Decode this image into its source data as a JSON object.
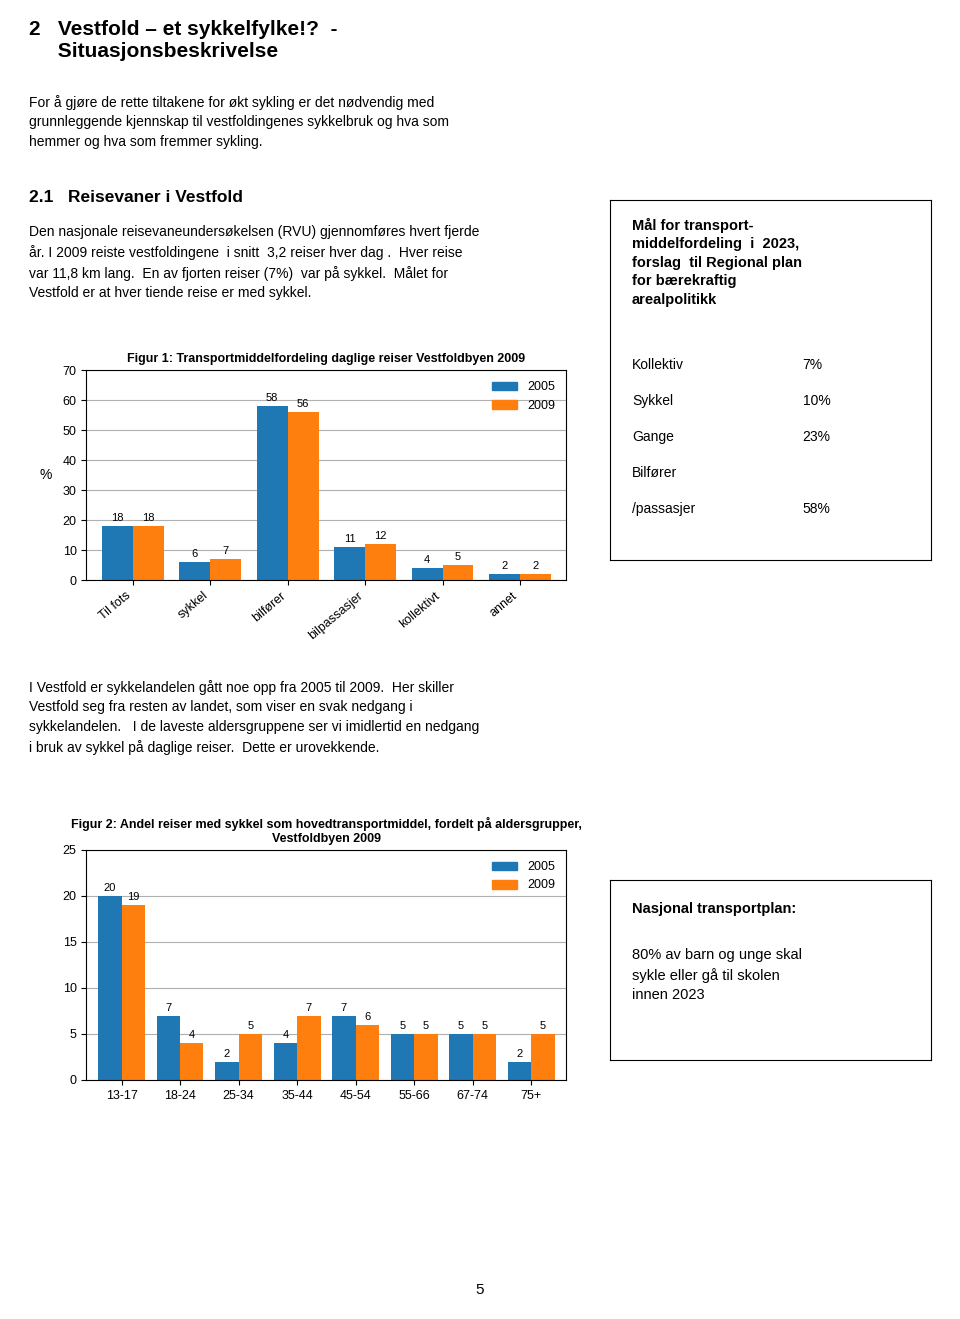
{
  "title": "2   Vestfold – et sykkelfylke!?  -\n     Situasjonsbeskrivelse",
  "annotations": [
    "For å gjøre de rette tiltakene for økt sykling er det nødvendig med\ngrunnleggende kjennskap til vestfoldingenes sykkelbruk og hva som\nhemmer og hva som fremmer sykling.",
    "2.1   Reisevaner i Vestfold",
    "Den nasjonale reisevaneundersøkelsen (RVU) gjennomføres hvert fjerde\når. I 2009 reiste vestfoldingene  i snitt  3,2 reiser hver dag .  Hver reise\nvar 11,8 km lang.  En av fjorten reiser (7%)  var på sykkel.  Målet for\nVestfold er at hver tiende reise er med sykkel.",
    "I Vestfold er sykkelandelen gått noe opp fra 2005 til 2009.  Her skiller\nVestfold seg fra resten av landet, som viser en svak nedgang i\nsykkelandelen.   I de laveste aldersgruppene ser vi imidlertid en nedgang\ni bruk av sykkel på daglige reiser.  Dette er urovekkende.",
    "Mål for transport-\nmiddelfordeling  i  2023,\nforslag  til Regional plan\nfor bærekraftig\narealpolitikk",
    "Kollektiv",
    "7%",
    "Sykkel",
    "10%",
    "Gange",
    "23%",
    "Bilfører",
    "/passasjer",
    "58%",
    "Nasjonal transportplan:",
    "80% av barn og unge skal\nsykle eller gå til skolen\ninnen 2023",
    "5"
  ],
  "chart_data": [
    {
      "type": "bar",
      "title": "Figur 1: Transportmiddelfordeling daglige reiser Vestfoldbyen 2009",
      "categories": [
        "Til fots",
        "sykkel",
        "bilfører",
        "bilpassasjer",
        "kollektivt",
        "annet"
      ],
      "series": [
        {
          "name": "2005",
          "values": [
            18,
            6,
            58,
            11,
            4,
            2
          ]
        },
        {
          "name": "2009",
          "values": [
            18,
            7,
            56,
            12,
            5,
            2
          ]
        }
      ],
      "ylabel": "%",
      "ylim": [
        0,
        70
      ],
      "yticks": [
        0,
        10,
        20,
        30,
        40,
        50,
        60,
        70
      ],
      "grid": true,
      "legend": "upper right",
      "data_labels": true
    },
    {
      "type": "bar",
      "title": "Figur 2: Andel reiser med sykkel som hovedtransportmiddel, fordelt på aldersgrupper,\nVestfoldbyen 2009",
      "categories": [
        "13-17",
        "18-24",
        "25-34",
        "35-44",
        "45-54",
        "55-66",
        "67-74",
        "75+"
      ],
      "series": [
        {
          "name": "2005",
          "values": [
            20,
            7,
            2,
            4,
            7,
            5,
            5,
            2
          ]
        },
        {
          "name": "2009",
          "values": [
            19,
            4,
            5,
            7,
            6,
            5,
            5,
            5
          ]
        }
      ],
      "ylim": [
        0,
        25
      ],
      "yticks": [
        0,
        5,
        10,
        15,
        20,
        25
      ],
      "grid": true,
      "legend": "upper right",
      "data_labels": true
    }
  ]
}
